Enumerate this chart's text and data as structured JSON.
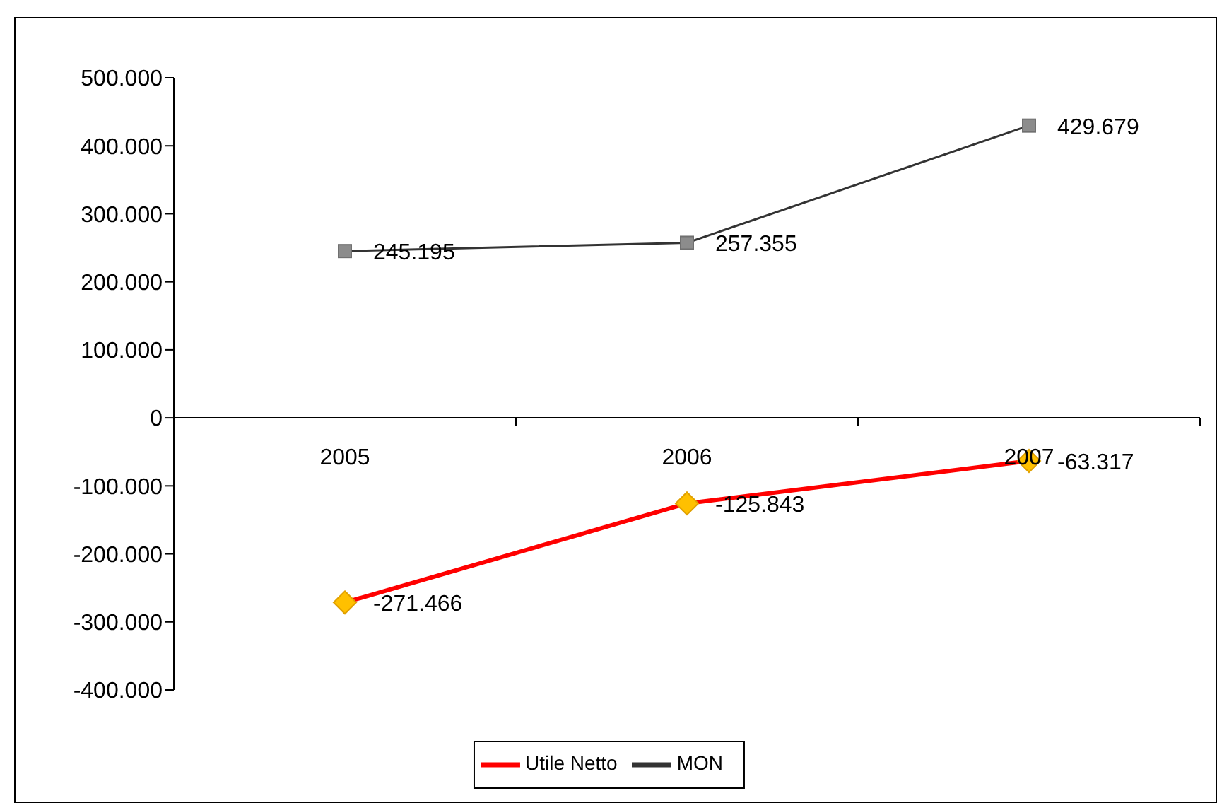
{
  "chart_data": {
    "type": "line",
    "categories": [
      "2005",
      "2006",
      "2007"
    ],
    "series": [
      {
        "name": "Utile Netto",
        "color": "#ff0000",
        "marker": "diamond",
        "values": [
          -271466,
          -125843,
          -63317
        ],
        "value_labels": [
          "-271.466",
          "-125.843",
          "-63.317"
        ]
      },
      {
        "name": "MON",
        "color": "#333333",
        "marker": "square",
        "values": [
          245195,
          257355,
          429679
        ],
        "value_labels": [
          "245.195",
          "257.355",
          "429.679"
        ]
      }
    ],
    "ylim": [
      -400000,
      500000
    ],
    "yticks": [
      {
        "value": -400000,
        "label": "-400.000"
      },
      {
        "value": -300000,
        "label": "-300.000"
      },
      {
        "value": -200000,
        "label": "-200.000"
      },
      {
        "value": -100000,
        "label": "-100.000"
      },
      0,
      {
        "value": 100000,
        "label": "100.000"
      },
      {
        "value": 200000,
        "label": "200.000"
      },
      {
        "value": 300000,
        "label": "300.000"
      },
      {
        "value": 400000,
        "label": "400.000"
      },
      {
        "value": 500000,
        "label": "500.000"
      }
    ],
    "grid": false,
    "legend": "bottom"
  }
}
